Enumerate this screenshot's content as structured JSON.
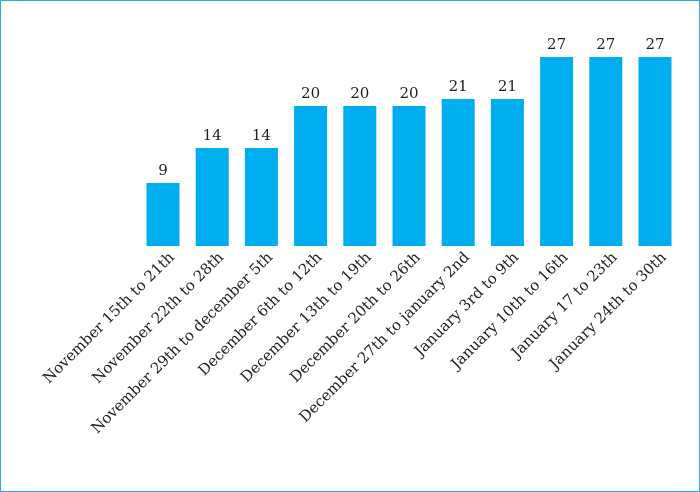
{
  "chart_data": {
    "type": "bar",
    "categories": [
      "November 15th to 21th",
      "November 22th to 28th",
      "November 29th to december 5th",
      "December 6th to 12th",
      "December 13th to 19th",
      "December 20th to 26th",
      "December 27th to january 2nd",
      "January 3rd to 9th",
      "January 10th to 16th",
      "January 17 to 23th",
      "January 24th to 30th"
    ],
    "values": [
      9,
      14,
      14,
      20,
      20,
      20,
      21,
      21,
      27,
      27,
      27
    ],
    "ylim": [
      0,
      27
    ],
    "grid": false,
    "legend": "none",
    "bar_color": "#00adef",
    "frame_color": "#29a7e1"
  }
}
